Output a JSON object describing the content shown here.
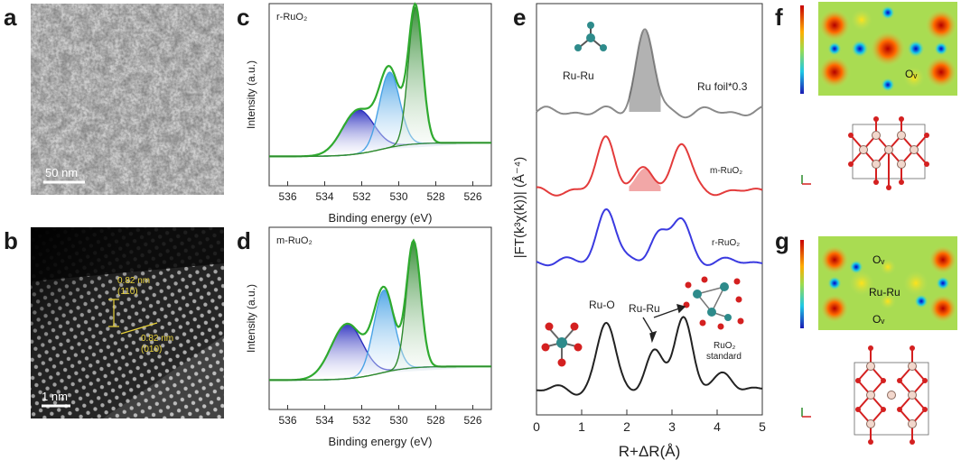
{
  "panels": {
    "a": {
      "letter": "a",
      "scalebar": "50 nm"
    },
    "b": {
      "letter": "b",
      "scalebar": "1 nm",
      "annot_1": "0.82 nm",
      "annot_1b": "(110)",
      "annot_2": "0.82 nm",
      "annot_2b": "(010)"
    },
    "c": {
      "letter": "c",
      "sample": "r-RuO₂",
      "ylabel": "Intensity (a.u.)",
      "xlabel": "Binding energy (eV)",
      "ticks": [
        "536",
        "534",
        "532",
        "530",
        "528",
        "526"
      ]
    },
    "d": {
      "letter": "d",
      "sample": "m-RuO₂",
      "ylabel": "Intensity (a.u.)",
      "xlabel": "Binding energy (eV)",
      "ticks": [
        "536",
        "534",
        "532",
        "530",
        "528",
        "526"
      ]
    },
    "e": {
      "letter": "e",
      "ylabel": "|FT(k³χ(k))| (Å⁻⁴)",
      "xlabel": "R+ΔR(Å)",
      "ticks": [
        "0",
        "1",
        "2",
        "3",
        "4",
        "5"
      ],
      "label_ru_ru_top": "Ru-Ru",
      "label_ru_foil": "Ru foil*0.3",
      "label_m": "m-RuO₂",
      "label_r": "r-RuO₂",
      "label_ru_o": "Ru-O",
      "label_ru_ru_bottom": "Ru-Ru",
      "label_std_1": "RuO₂",
      "label_std_2": "standard"
    },
    "f": {
      "letter": "f",
      "label_ov": "Oᵥ"
    },
    "g": {
      "letter": "g",
      "label_ov_top": "Oᵥ",
      "label_ru_ru": "Ru-Ru",
      "label_ov_bottom": "Oᵥ"
    }
  },
  "chart_data": [
    {
      "type": "line",
      "panel": "c",
      "title": "r-RuO₂",
      "xlabel": "Binding energy (eV)",
      "ylabel": "Intensity (a.u.)",
      "xlim": [
        537,
        525
      ],
      "x_ticks": [
        536,
        534,
        532,
        530,
        528,
        526
      ],
      "series": [
        {
          "center": 532.2,
          "amplitude": 0.32,
          "color": "#2b2fbf"
        },
        {
          "center": 530.5,
          "amplitude": 0.55,
          "color": "#4aa3e6"
        },
        {
          "center": 529.1,
          "amplitude": 1.0,
          "color": "#2f8a2f"
        }
      ]
    },
    {
      "type": "line",
      "panel": "d",
      "title": "m-RuO₂",
      "xlabel": "Binding energy (eV)",
      "ylabel": "Intensity (a.u.)",
      "xlim": [
        537,
        525
      ],
      "x_ticks": [
        536,
        534,
        532,
        530,
        528,
        526
      ],
      "series": [
        {
          "center": 532.8,
          "amplitude": 0.4,
          "color": "#2b2fbf"
        },
        {
          "center": 530.8,
          "amplitude": 0.6,
          "color": "#4aa3e6"
        },
        {
          "center": 529.2,
          "amplitude": 0.92,
          "color": "#2f8a2f"
        }
      ]
    },
    {
      "type": "line",
      "panel": "e",
      "xlabel": "R+ΔR(Å)",
      "ylabel": "|FT(k³χ(k))| (Å⁻⁴)",
      "xlim": [
        0,
        5
      ],
      "x_ticks": [
        0,
        1,
        2,
        3,
        4,
        5
      ],
      "series": [
        {
          "name": "Ru foil*0.3",
          "color": "#8a8a8a",
          "peaks": [
            [
              2.4,
              1.0
            ]
          ]
        },
        {
          "name": "m-RuO₂",
          "color": "#e33b3b",
          "peaks": [
            [
              1.55,
              0.85
            ],
            [
              2.4,
              0.35
            ],
            [
              3.2,
              0.75
            ]
          ]
        },
        {
          "name": "r-RuO₂",
          "color": "#3a3ae0",
          "peaks": [
            [
              1.55,
              0.85
            ],
            [
              2.7,
              0.45
            ],
            [
              3.2,
              0.65
            ]
          ]
        },
        {
          "name": "RuO₂ standard",
          "color": "#222222",
          "peaks": [
            [
              1.55,
              0.85
            ],
            [
              2.6,
              0.45
            ],
            [
              3.25,
              0.95
            ],
            [
              4.2,
              0.2
            ]
          ]
        }
      ]
    }
  ]
}
